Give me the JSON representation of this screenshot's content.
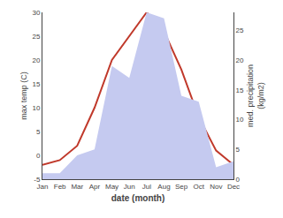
{
  "chart_data": {
    "type": "line",
    "x_label": "date (month)",
    "y_label": "max temp (C)",
    "y2_label": "med. precipitation\n(kg/m2)",
    "categories": [
      "Jan",
      "Feb",
      "Mar",
      "Apr",
      "May",
      "Jun",
      "Jul",
      "Aug",
      "Sep",
      "Oct",
      "Nov",
      "Dec"
    ],
    "series": [
      {
        "type": "area",
        "axis": "y2",
        "color": "#c5caf0",
        "values": [
          1,
          1,
          4,
          5,
          19,
          17,
          28,
          27,
          14,
          13,
          2,
          3
        ]
      },
      {
        "type": "line",
        "color": "#c0392b",
        "values": [
          -2,
          -1,
          2,
          10,
          20,
          25,
          30,
          26,
          18,
          8,
          1,
          -2
        ]
      }
    ],
    "ylim": [
      -5,
      30
    ],
    "yticks": [
      -5,
      0,
      5,
      10,
      15,
      20,
      25,
      30
    ],
    "y2lim": [
      0,
      28
    ],
    "y2ticks": [
      0,
      5,
      10,
      15,
      20,
      25
    ],
    "grid": false
  }
}
